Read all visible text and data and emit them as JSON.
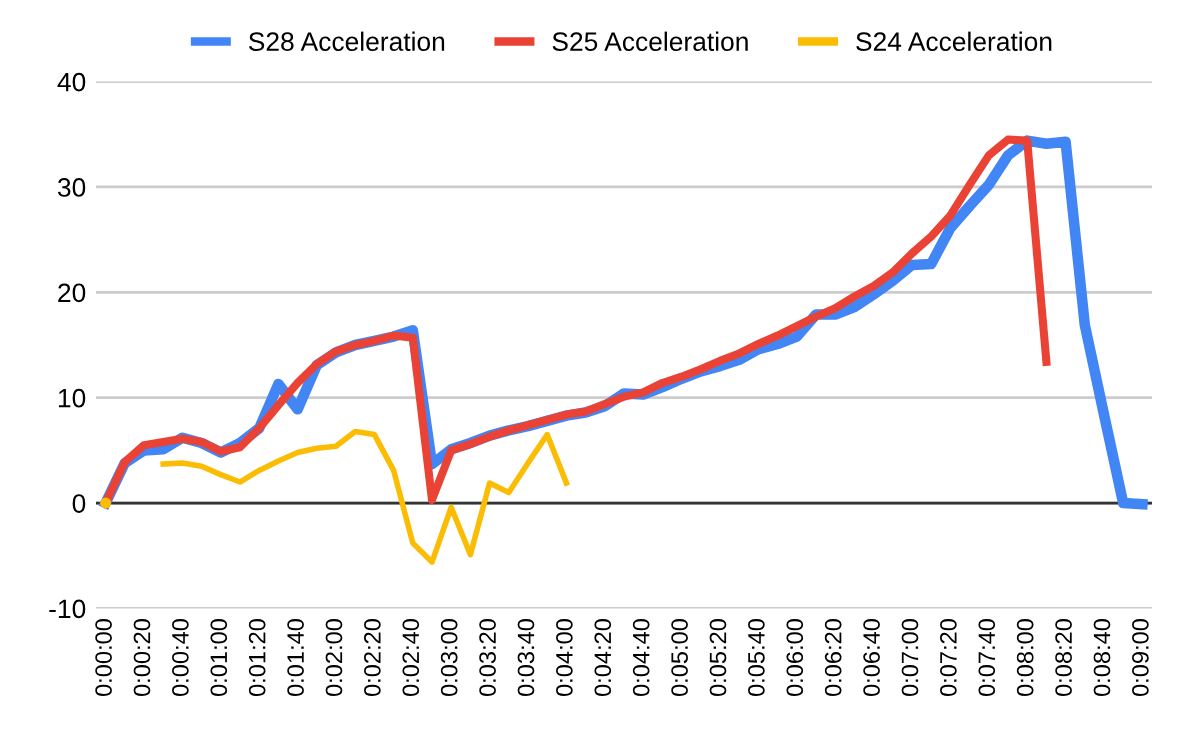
{
  "chart_data": {
    "type": "line",
    "categories": [
      "0:00:00",
      null,
      "0:00:20",
      null,
      "0:00:40",
      null,
      "0:01:00",
      null,
      "0:01:20",
      null,
      "0:01:40",
      null,
      "0:02:00",
      null,
      "0:02:20",
      null,
      "0:02:40",
      null,
      "0:03:00",
      null,
      "0:03:20",
      null,
      "0:03:40",
      null,
      "0:04:00",
      null,
      "0:04:20",
      null,
      "0:04:40",
      null,
      "0:05:00",
      null,
      "0:05:20",
      null,
      "0:05:40",
      null,
      "0:06:00",
      null,
      "0:06:20",
      null,
      "0:06:40",
      null,
      "0:07:00",
      null,
      "0:07:20",
      null,
      "0:07:40",
      null,
      "0:08:00",
      null,
      "0:08:20",
      null,
      "0:08:40",
      null,
      "0:09:00"
    ],
    "series": [
      {
        "name": "S28 Acceleration",
        "color": "#4285f4",
        "values": [
          0,
          3.8,
          5.0,
          5.1,
          6.2,
          5.7,
          4.8,
          5.7,
          7.1,
          11.3,
          8.9,
          13.1,
          14.3,
          15.0,
          15.4,
          15.8,
          16.4,
          3.7,
          5.1,
          5.7,
          6.4,
          6.9,
          7.3,
          7.8,
          8.3,
          8.6,
          9.2,
          10.4,
          10.3,
          11.0,
          11.8,
          12.5,
          13.0,
          13.6,
          14.6,
          15.1,
          15.8,
          17.9,
          17.9,
          18.6,
          19.8,
          21.1,
          22.6,
          22.7,
          26.1,
          28.2,
          30.2,
          33.0,
          34.4,
          34.1,
          34.3,
          16.9,
          8.4,
          0,
          -0.1
        ]
      },
      {
        "name": "S25 Acceleration",
        "color": "#ea4335",
        "values": [
          0,
          3.9,
          5.5,
          5.8,
          6.1,
          5.8,
          4.9,
          5.3,
          7.1,
          9.3,
          11.4,
          13.2,
          14.4,
          15.0,
          15.4,
          15.9,
          15.7,
          0.3,
          5.0,
          5.6,
          6.3,
          6.9,
          7.4,
          7.9,
          8.4,
          8.7,
          9.4,
          10.1,
          10.5,
          11.4,
          12.0,
          12.7,
          13.5,
          14.2,
          15.1,
          15.9,
          16.8,
          17.7,
          18.5,
          19.6,
          20.6,
          21.9,
          23.7,
          25.3,
          27.3,
          30.2,
          33.0,
          34.5,
          34.4,
          13.4,
          null,
          null,
          null,
          null,
          null
        ]
      },
      {
        "name": "S24 Acceleration",
        "color": "#fbbc04",
        "values": [
          0,
          null,
          null,
          3.7,
          3.8,
          3.5,
          2.7,
          2.0,
          3.1,
          4.0,
          4.8,
          5.2,
          5.4,
          6.8,
          6.5,
          3.1,
          -3.8,
          -5.6,
          -0.4,
          -4.9,
          1.9,
          1.0,
          3.8,
          6.5,
          1.9,
          null,
          null,
          null,
          null,
          null,
          null,
          null,
          null,
          null,
          null,
          null,
          null,
          null,
          null,
          null,
          null,
          null,
          null,
          null,
          null,
          null,
          null,
          null,
          null,
          null,
          null,
          null,
          null,
          null,
          null
        ]
      }
    ],
    "ylim": [
      -10,
      40
    ],
    "yticks": [
      -10,
      0,
      10,
      20,
      30,
      40
    ],
    "grid": "y",
    "legend": "top",
    "ref_lines": [
      {
        "axis": "y",
        "value": 0,
        "color": "#333333"
      }
    ]
  }
}
